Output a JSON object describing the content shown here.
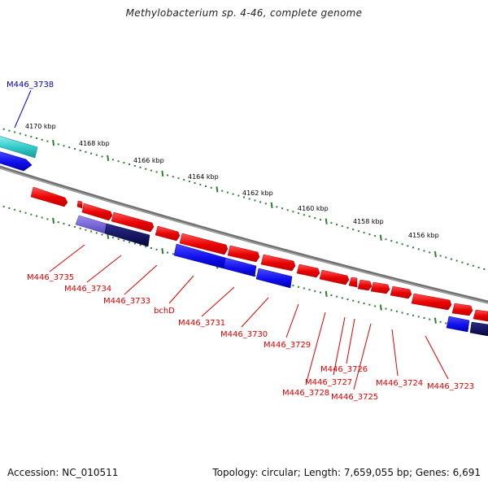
{
  "title": "Methylobacterium sp. 4-46, complete genome",
  "footer": {
    "accession": "Accession: NC_010511",
    "summary": "Topology: circular; Length: 7,659,055 bp; Genes: 6,691"
  },
  "colors": {
    "forward_gene": "#ee1111",
    "reverse_gene": "#1a1aee",
    "highlight_gene": "#2ec8c8",
    "dark_gene": "#101060",
    "light_gene": "#6a5acd",
    "backbone": "#808080",
    "tick": "#2e7d32",
    "label_forward": "#dd0000",
    "label_reverse": "#0000aa"
  },
  "scale_labels": [
    "4170 kbp",
    "4168 kbp",
    "4166 kbp",
    "4164 kbp",
    "4162 kbp",
    "4160 kbp",
    "4158 kbp",
    "4156 kbp"
  ],
  "gene_labels": {
    "top": [
      "M446_3738"
    ],
    "bottom": [
      "M446_3735",
      "M446_3734",
      "M446_3733",
      "bchD",
      "M446_3731",
      "M446_3730",
      "M446_3729",
      "M446_3726",
      "M446_3727",
      "M446_3728",
      "M446_3725",
      "M446_3724",
      "M446_3723"
    ]
  }
}
